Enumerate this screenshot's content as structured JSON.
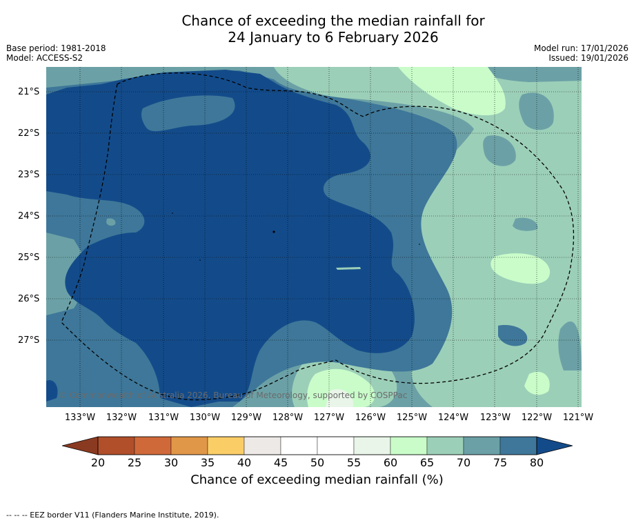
{
  "title": {
    "line1": "Chance of exceeding the median rainfall for",
    "line2": "24 January to 6 February 2026"
  },
  "meta_left": {
    "base_period": "Base period: 1981-2018",
    "model": "Model: ACCESS-S2"
  },
  "meta_right": {
    "model_run": "Model run: 17/01/2026",
    "issued": "Issued: 19/01/2026"
  },
  "map": {
    "copyright": "© Commonwealth of Australia 2026, Bureau of Meteorology, supported by COSPPac",
    "lat_labels": [
      "21°S",
      "22°S",
      "23°S",
      "24°S",
      "25°S",
      "26°S",
      "27°S"
    ],
    "lon_labels": [
      "133°W",
      "132°W",
      "131°W",
      "130°W",
      "129°W",
      "128°W",
      "127°W",
      "126°W",
      "125°W",
      "124°W",
      "123°W",
      "122°W",
      "121°W"
    ],
    "colors": {
      "c80": "#134b8a",
      "c75": "#3e7799",
      "c70": "#6ba1a6",
      "c65": "#9ccfb8",
      "c60": "#c9fcc9",
      "c55": "#e9f5e9"
    }
  },
  "colorbar": {
    "ticks": [
      "20",
      "25",
      "30",
      "35",
      "40",
      "45",
      "50",
      "55",
      "60",
      "65",
      "70",
      "75",
      "80"
    ],
    "colors": [
      "#b04f2a",
      "#d0693a",
      "#e09748",
      "#fbcd67",
      "#ede9e6",
      "#ffffff",
      "#ffffff",
      "#e9f5e9",
      "#c9fcc9",
      "#9ccfb8",
      "#6ba1a6",
      "#3e7799"
    ],
    "low_color": "#8a3a21",
    "high_color": "#134b8a",
    "label": "Chance of exceeding median rainfall (%)"
  },
  "legend": {
    "text": "--  --  -- EEZ border V11 (Flanders Marine Institute, 2019)."
  }
}
